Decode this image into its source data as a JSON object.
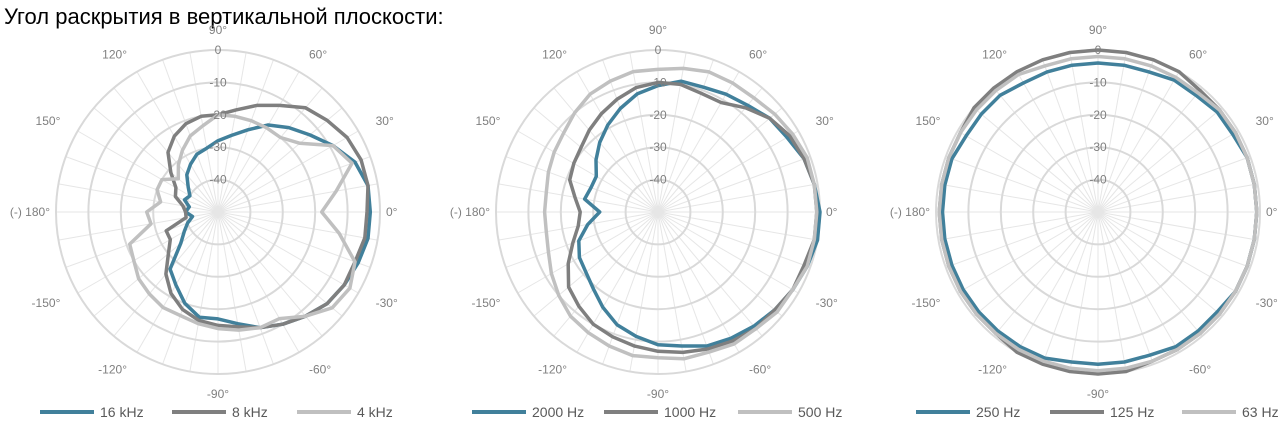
{
  "page": {
    "title": "Угол раскрытия в вертикальной плоскости:"
  },
  "colors": {
    "grid": "#d9d9d9"
  },
  "chart_data": [
    {
      "type": "polar",
      "title": "",
      "angle_labels": [
        "90°",
        "60°",
        "30°",
        "0°",
        "-30°",
        "-60°",
        "-90°",
        "-120°",
        "-150°",
        "(-) 180°",
        "150°",
        "120°"
      ],
      "angle_values": [
        90,
        60,
        30,
        0,
        -30,
        -60,
        -90,
        -120,
        -150,
        180,
        150,
        120
      ],
      "radial_ticks": [
        0,
        -10,
        -20,
        -30,
        -40
      ],
      "rlim": [
        -50,
        0
      ],
      "grid": true,
      "legend": "bottom",
      "series": [
        {
          "name": "16 kHz",
          "color": "#41809b",
          "theta": [
            0,
            10,
            20,
            30,
            40,
            50,
            60,
            70,
            80,
            90,
            100,
            110,
            120,
            130,
            140,
            150,
            160,
            170,
            180,
            190,
            200,
            210,
            220,
            230,
            240,
            250,
            260,
            270,
            280,
            290,
            300,
            310,
            320,
            330,
            340,
            350
          ],
          "values": [
            -3,
            -3,
            -5,
            -9,
            -13,
            -16,
            -19,
            -23,
            -26,
            -28,
            -30,
            -31,
            -33,
            -35,
            -38,
            -40,
            -39,
            -41,
            -40,
            -42,
            -40,
            -38,
            -35,
            -27,
            -24,
            -20,
            -17,
            -17,
            -15,
            -12,
            -10,
            -8,
            -6,
            -5,
            -4,
            -3
          ]
        },
        {
          "name": "8 kHz",
          "color": "#7f7f7f",
          "theta": [
            0,
            10,
            20,
            30,
            40,
            50,
            60,
            70,
            80,
            90,
            100,
            110,
            120,
            130,
            140,
            150,
            160,
            170,
            180,
            190,
            200,
            210,
            220,
            230,
            240,
            250,
            260,
            270,
            280,
            290,
            300,
            310,
            320,
            330,
            340,
            350
          ],
          "values": [
            -4,
            -3,
            -3,
            -4,
            -6,
            -8,
            -12,
            -15,
            -18,
            -20,
            -20,
            -21,
            -23,
            -26,
            -31,
            -35,
            -36,
            -39,
            -40,
            -40,
            -33,
            -33,
            -30,
            -25,
            -21,
            -18,
            -16,
            -15,
            -14,
            -12,
            -10,
            -8,
            -6,
            -5,
            -5,
            -4
          ]
        },
        {
          "name": "4 kHz",
          "color": "#c0c0c0",
          "theta": [
            0,
            10,
            20,
            30,
            40,
            50,
            60,
            70,
            80,
            90,
            100,
            110,
            120,
            130,
            140,
            150,
            160,
            170,
            180,
            190,
            200,
            210,
            220,
            230,
            240,
            250,
            260,
            270,
            280,
            290,
            300,
            310,
            320,
            330,
            340,
            350
          ],
          "values": [
            -18,
            -13,
            -6,
            -9,
            -17,
            -20,
            -20,
            -20,
            -20,
            -20,
            -23,
            -25,
            -28,
            -31,
            -34,
            -30,
            -30,
            -32,
            -28,
            -29,
            -21,
            -20,
            -18,
            -17,
            -16,
            -16,
            -15,
            -14,
            -13,
            -12,
            -12,
            -8,
            -4,
            -3,
            -5,
            -12
          ]
        }
      ]
    },
    {
      "type": "polar",
      "title": "",
      "angle_labels": [
        "90°",
        "60°",
        "30°",
        "0°",
        "-30°",
        "-60°",
        "-90°",
        "-120°",
        "-150°",
        "(-) 180°",
        "150°",
        "120°"
      ],
      "angle_values": [
        90,
        60,
        30,
        0,
        -30,
        -60,
        -90,
        -120,
        -150,
        180,
        150,
        120
      ],
      "radial_ticks": [
        0,
        -10,
        -20,
        -30,
        -40
      ],
      "rlim": [
        -50,
        0
      ],
      "grid": true,
      "legend": "bottom",
      "series": [
        {
          "name": "2000 Hz",
          "color": "#41809b",
          "theta": [
            0,
            10,
            20,
            30,
            40,
            50,
            60,
            70,
            80,
            90,
            100,
            110,
            120,
            130,
            140,
            150,
            160,
            170,
            180,
            190,
            200,
            210,
            220,
            230,
            240,
            250,
            260,
            270,
            280,
            290,
            300,
            310,
            320,
            330,
            340,
            350
          ],
          "values": [
            0,
            -1,
            -2,
            -4,
            -5,
            -7,
            -8,
            -9,
            -9,
            -11,
            -13,
            -16,
            -19,
            -22,
            -25,
            -28,
            -28,
            -27,
            -32,
            -28,
            -24,
            -22,
            -21,
            -19,
            -16,
            -13,
            -11,
            -9,
            -8,
            -6,
            -5,
            -4,
            -3,
            -2,
            -1,
            0
          ]
        },
        {
          "name": "1000 Hz",
          "color": "#7f7f7f",
          "theta": [
            0,
            10,
            20,
            30,
            40,
            50,
            60,
            70,
            80,
            90,
            100,
            110,
            120,
            130,
            140,
            150,
            160,
            170,
            180,
            190,
            200,
            210,
            220,
            230,
            240,
            250,
            260,
            270,
            280,
            290,
            300,
            310,
            320,
            330,
            340,
            350
          ],
          "values": [
            -1,
            -1,
            -2,
            -3,
            -5,
            -8,
            -11,
            -11,
            -10,
            -10,
            -11,
            -13,
            -15,
            -17,
            -19,
            -20,
            -21,
            -24,
            -26,
            -25,
            -22,
            -18,
            -14,
            -12,
            -10,
            -9,
            -8,
            -7,
            -6,
            -5,
            -4,
            -3,
            -3,
            -2,
            -2,
            -1
          ]
        },
        {
          "name": "500 Hz",
          "color": "#c0c0c0",
          "theta": [
            0,
            10,
            20,
            30,
            40,
            50,
            60,
            70,
            80,
            90,
            100,
            110,
            120,
            130,
            140,
            150,
            160,
            170,
            180,
            190,
            200,
            210,
            220,
            230,
            240,
            250,
            260,
            270,
            280,
            290,
            300,
            310,
            320,
            330,
            340,
            350
          ],
          "values": [
            -1,
            -1,
            -1,
            -2,
            -3,
            -4,
            -4,
            -4,
            -5,
            -6,
            -6,
            -7,
            -8,
            -10,
            -12,
            -13,
            -14,
            -15,
            -15,
            -15,
            -14,
            -12,
            -10,
            -8,
            -7,
            -6,
            -5,
            -5,
            -4,
            -4,
            -3,
            -3,
            -2,
            -2,
            -1,
            -1
          ]
        }
      ]
    },
    {
      "type": "polar",
      "title": "",
      "angle_labels": [
        "90°",
        "60°",
        "30°",
        "0°",
        "-30°",
        "-60°",
        "-90°",
        "-120°",
        "-150°",
        "(-) 180°",
        "150°",
        "120°"
      ],
      "angle_values": [
        90,
        60,
        30,
        0,
        -30,
        -60,
        -90,
        -120,
        -150,
        180,
        150,
        120
      ],
      "radial_ticks": [
        0,
        -10,
        -20,
        -30,
        -40
      ],
      "rlim": [
        -50,
        0
      ],
      "grid": true,
      "legend": "bottom",
      "series": [
        {
          "name": "250 Hz",
          "color": "#41809b",
          "theta": [
            0,
            10,
            20,
            30,
            40,
            50,
            60,
            70,
            80,
            90,
            100,
            110,
            120,
            130,
            140,
            150,
            160,
            170,
            180,
            190,
            200,
            210,
            220,
            230,
            240,
            250,
            260,
            270,
            280,
            290,
            300,
            310,
            320,
            330,
            340,
            350
          ],
          "values": [
            -1,
            -1,
            -1,
            -2,
            -2,
            -3,
            -3,
            -4,
            -4,
            -4,
            -4,
            -4,
            -4,
            -3,
            -3,
            -3,
            -2,
            -2,
            -2,
            -2,
            -2,
            -2,
            -2,
            -2,
            -2,
            -2,
            -3,
            -3,
            -3,
            -3,
            -2,
            -2,
            -2,
            -1,
            -1,
            -1
          ]
        },
        {
          "name": "125 Hz",
          "color": "#7f7f7f",
          "theta": [
            0,
            10,
            20,
            30,
            40,
            50,
            60,
            70,
            80,
            90,
            100,
            110,
            120,
            130,
            140,
            150,
            160,
            170,
            180,
            190,
            200,
            210,
            220,
            230,
            240,
            250,
            260,
            270,
            280,
            290,
            300,
            310,
            320,
            330,
            340,
            350
          ],
          "values": [
            -1,
            -1,
            -1,
            -1,
            -1,
            -1,
            0,
            0,
            0,
            0,
            0,
            0,
            0,
            0,
            0,
            -1,
            -1,
            -1,
            -1,
            -1,
            -1,
            -1,
            -1,
            -1,
            0,
            0,
            0,
            0,
            0,
            -1,
            -1,
            -1,
            -1,
            -1,
            -1,
            -1
          ]
        },
        {
          "name": "63 Hz",
          "color": "#c0c0c0",
          "theta": [
            0,
            10,
            20,
            30,
            40,
            50,
            60,
            70,
            80,
            90,
            100,
            110,
            120,
            130,
            140,
            150,
            160,
            170,
            180,
            190,
            200,
            210,
            220,
            230,
            240,
            250,
            260,
            270,
            280,
            290,
            300,
            310,
            320,
            330,
            340,
            350
          ],
          "values": [
            -1,
            -1,
            -1,
            -1,
            -1,
            -2,
            -2,
            -2,
            -2,
            -2,
            -2,
            -2,
            -1,
            -1,
            -1,
            -1,
            -1,
            -1,
            -1,
            -1,
            -1,
            -1,
            -1,
            -1,
            -1,
            -1,
            -1,
            -1,
            -1,
            -1,
            -1,
            -1,
            -1,
            -1,
            -1,
            -1
          ]
        }
      ]
    }
  ]
}
